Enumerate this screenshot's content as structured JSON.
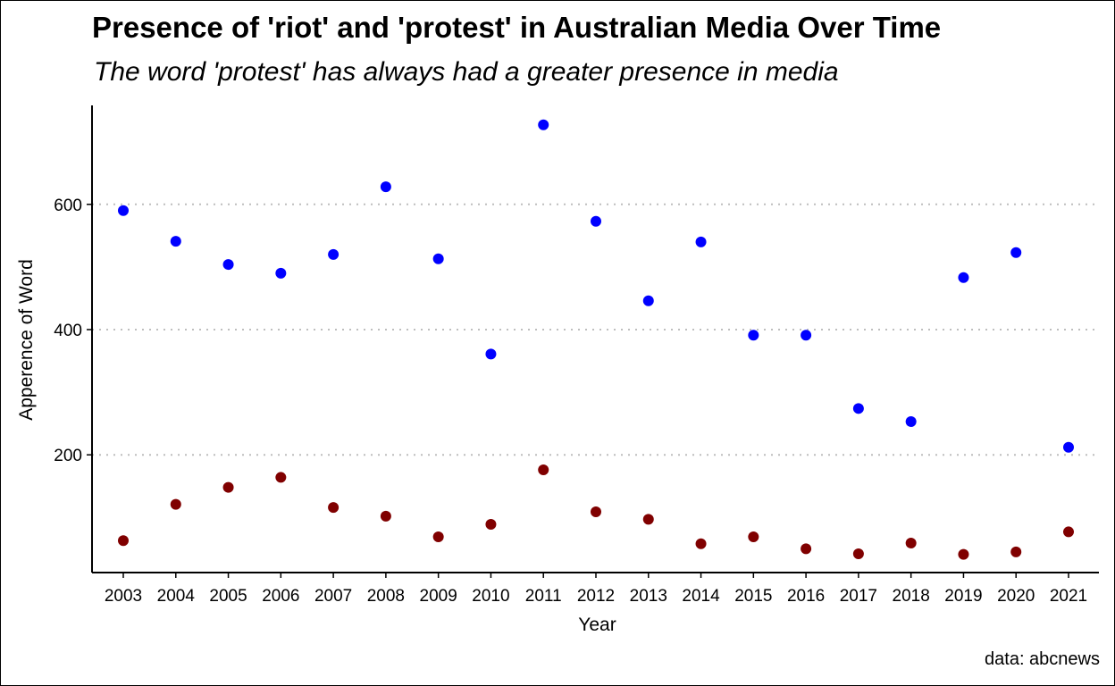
{
  "chart_title": "Presence of 'riot' and 'protest' in Australian Media Over Time",
  "chart_subtitle": "The word 'protest' has always had a greater presence in media",
  "caption": "data: abcnews",
  "chart_data": {
    "type": "scatter",
    "title": "Presence of 'riot' and 'protest' in Australian Media Over Time",
    "subtitle": "The word 'protest' has always had a greater presence in media",
    "xlabel": "Year",
    "ylabel": "Apperence of Word",
    "x": [
      2003,
      2004,
      2005,
      2006,
      2007,
      2008,
      2009,
      2010,
      2011,
      2012,
      2013,
      2014,
      2015,
      2016,
      2017,
      2018,
      2019,
      2020,
      2021
    ],
    "x_tick_labels": [
      "2003",
      "2004",
      "2005",
      "2006",
      "2007",
      "2008",
      "2009",
      "2010",
      "2011",
      "2012",
      "2013",
      "2014",
      "2015",
      "2016",
      "2017",
      "2018",
      "2019",
      "2020",
      "2021"
    ],
    "y_ticks": [
      200,
      400,
      600
    ],
    "ylim": [
      12,
      758
    ],
    "grid": "horizontal-dotted",
    "legend": "none",
    "series": [
      {
        "color": "#0000ff",
        "values": [
          590,
          541,
          504,
          490,
          520,
          628,
          513,
          361,
          727,
          573,
          446,
          540,
          391,
          391,
          274,
          253,
          483,
          523,
          212
        ]
      },
      {
        "color": "#800000",
        "values": [
          63,
          121,
          148,
          164,
          116,
          102,
          69,
          89,
          176,
          109,
          97,
          58,
          69,
          50,
          42,
          59,
          41,
          45,
          77
        ]
      }
    ]
  }
}
